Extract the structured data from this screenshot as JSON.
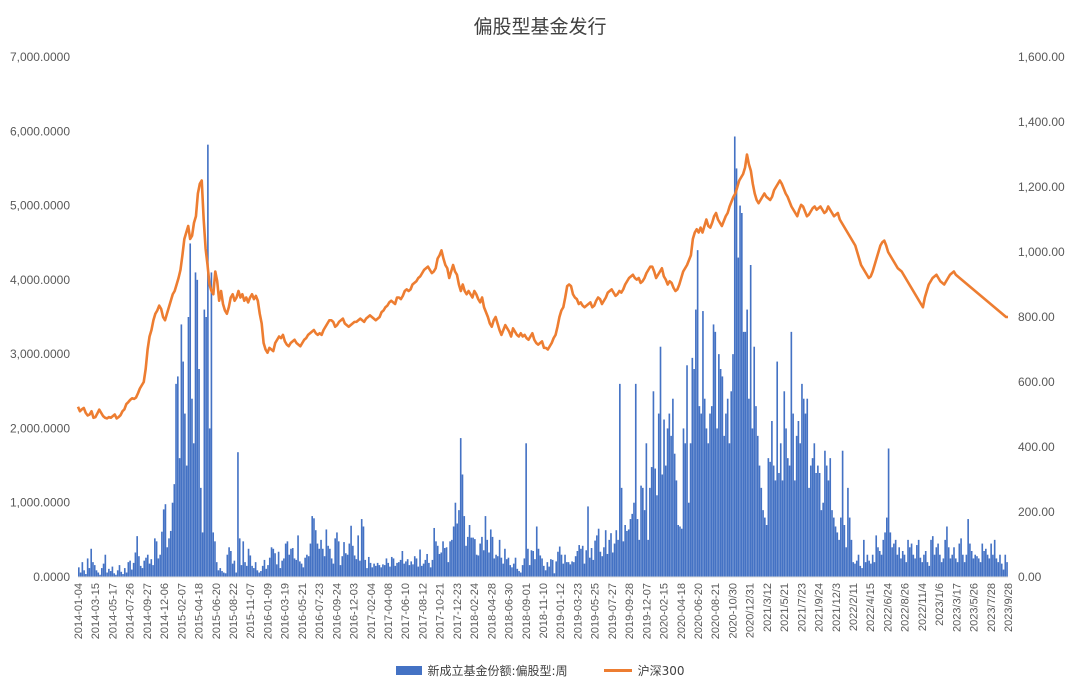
{
  "colors": {
    "bar": "#4472C4",
    "line": "#ED7D31",
    "axis": "#D9D9D9",
    "text": "#595959"
  },
  "chart_data": {
    "type": "bar",
    "title": "偏股型基金发行",
    "left_axis": {
      "range": [
        0,
        7000
      ],
      "ticks": [
        0,
        1000,
        2000,
        3000,
        4000,
        5000,
        6000,
        7000
      ],
      "tick_labels": [
        "0.0000",
        "1,000.0000",
        "2,000.0000",
        "3,000.0000",
        "4,000.0000",
        "5,000.0000",
        "6,000.0000",
        "7,000.0000"
      ]
    },
    "right_axis": {
      "range": [
        0,
        1600
      ],
      "ticks": [
        0,
        200,
        400,
        600,
        800,
        1000,
        1200,
        1400,
        1600
      ],
      "tick_labels": [
        "0.00",
        "200.00",
        "400.00",
        "600.00",
        "800.00",
        "1,000.00",
        "1,200.00",
        "1,400.00",
        "1,600.00"
      ]
    },
    "x_tick_labels": [
      "2014-01-04",
      "2014-03-15",
      "2014-05-17",
      "2014-07-26",
      "2014-09-27",
      "2014-12-06",
      "2015-02-07",
      "2015-04-18",
      "2015-06-20",
      "2015-08-22",
      "2015-11-07",
      "2016-01-09",
      "2016-03-19",
      "2016-05-21",
      "2016-07-23",
      "2016-09-24",
      "2016-12-03",
      "2017-02-04",
      "2017-04-08",
      "2017-06-10",
      "2017-08-12",
      "2017-10-21",
      "2017-12-23",
      "2018-02-24",
      "2018-04-28",
      "2018-06-30",
      "2018-09-01",
      "2018-11-10",
      "2019-01-12",
      "2019-03-23",
      "2019-05-25",
      "2019-07-27",
      "2019-09-28",
      "2019-12-07",
      "2020-02-15",
      "2020-04-18",
      "2020-06-20",
      "2020-08-21",
      "2020-10/30",
      "2020/12/31",
      "2021/3/12",
      "2021/5/21",
      "2021/7/23",
      "2021/9/24",
      "2021/12/3",
      "2022/2/11",
      "2022/4/15",
      "2022/6/24",
      "2022/8/26",
      "2022/11/4",
      "2023/1/6",
      "2023/3/17",
      "2023/5/26",
      "2023/7/28",
      "2023/9/28"
    ],
    "grid": false,
    "legend_position": "bottom",
    "series": [
      {
        "name": "新成立基金份额:偏股型:周",
        "type": "bar",
        "axis": "left",
        "x_start": 0,
        "x_end": 54,
        "values": [
          130,
          60,
          200,
          90,
          40,
          250,
          120,
          380,
          200,
          160,
          90,
          60,
          30,
          120,
          180,
          300,
          60,
          110,
          80,
          140,
          50,
          30,
          90,
          160,
          70,
          40,
          120,
          60,
          200,
          220,
          100,
          190,
          330,
          550,
          280,
          150,
          120,
          220,
          260,
          300,
          180,
          240,
          160,
          520,
          480,
          250,
          300,
          610,
          910,
          980,
          400,
          520,
          620,
          1000,
          1250,
          2600,
          2700,
          1600,
          3400,
          2900,
          2200,
          1500,
          3500,
          4490,
          2400,
          1800,
          4100,
          4000,
          2800,
          1200,
          600,
          3600,
          3500,
          5820,
          2000,
          4100,
          600,
          480,
          200,
          90,
          120,
          80,
          60,
          50,
          300,
          400,
          350,
          180,
          220,
          60,
          1680,
          520,
          160,
          480,
          200,
          150,
          380,
          290,
          150,
          120,
          200,
          90,
          60,
          80,
          150,
          230,
          110,
          160,
          260,
          400,
          380,
          320,
          170,
          340,
          120,
          220,
          250,
          450,
          480,
          300,
          380,
          390,
          250,
          230,
          560,
          210,
          180,
          130,
          260,
          300,
          280,
          450,
          820,
          790,
          630,
          450,
          380,
          500,
          380,
          280,
          640,
          420,
          380,
          250,
          180,
          520,
          600,
          480,
          160,
          280,
          470,
          320,
          300,
          450,
          690,
          420,
          290,
          240,
          560,
          220,
          780,
          680,
          230,
          120,
          270,
          190,
          130,
          180,
          150,
          190,
          160,
          130,
          170,
          160,
          250,
          190,
          140,
          270,
          250,
          150,
          190,
          200,
          230,
          350,
          180,
          210,
          240,
          160,
          210,
          170,
          280,
          250,
          140,
          370,
          150,
          180,
          230,
          310,
          190,
          130,
          230,
          660,
          480,
          420,
          310,
          330,
          480,
          390,
          400,
          200,
          480,
          500,
          680,
          1000,
          720,
          900,
          1870,
          1380,
          820,
          420,
          540,
          700,
          530,
          530,
          510,
          300,
          290,
          450,
          540,
          360,
          820,
          500,
          330,
          640,
          540,
          250,
          300,
          280,
          500,
          260,
          180,
          380,
          240,
          260,
          160,
          130,
          180,
          260,
          110,
          80,
          60,
          160,
          250,
          1800,
          380,
          160,
          360,
          350,
          240,
          680,
          380,
          290,
          250,
          150,
          90,
          200,
          140,
          240,
          230,
          50,
          210,
          340,
          410,
          300,
          180,
          300,
          200,
          200,
          170,
          210,
          200,
          280,
          350,
          430,
          380,
          420,
          180,
          360,
          950,
          260,
          390,
          230,
          490,
          560,
          650,
          340,
          280,
          400,
          630,
          310,
          500,
          590,
          330,
          450,
          630,
          500,
          2600,
          1200,
          480,
          700,
          620,
          640,
          780,
          850,
          1000,
          2600,
          780,
          500,
          1230,
          1200,
          900,
          1800,
          500,
          1200,
          1480,
          2500,
          1460,
          1100,
          2200,
          3100,
          1380,
          2120,
          1500,
          2000,
          2200,
          1900,
          2400,
          1660,
          1300,
          700,
          680,
          650,
          2000,
          1800,
          2850,
          1000,
          1800,
          2950,
          2800,
          3600,
          4400,
          2300,
          2200,
          3580,
          2400,
          2000,
          1800,
          2200,
          2300,
          3400,
          3300,
          2000,
          3000,
          2800,
          2700,
          1900,
          2200,
          2400,
          1800,
          2500,
          3000,
          5930,
          5500,
          4300,
          5000,
          4900,
          3300,
          3300,
          3600,
          2400,
          4200,
          2000,
          3100,
          2300,
          1900,
          1500,
          1200,
          900,
          800,
          700,
          1600,
          1550,
          2100,
          1500,
          1300,
          2900,
          1400,
          1800,
          1300,
          2500,
          2000,
          1600,
          1500,
          3300,
          2200,
          1300,
          1900,
          2100,
          1800,
          2600,
          2400,
          2200,
          2400,
          1200,
          1500,
          1600,
          1800,
          1400,
          1500,
          1400,
          900,
          1000,
          1700,
          1500,
          1300,
          1600,
          900,
          800,
          680,
          600,
          500,
          800,
          1700,
          700,
          400,
          1200,
          800,
          500,
          200,
          180,
          220,
          300,
          150,
          120,
          500,
          200,
          300,
          220,
          180,
          300,
          200,
          560,
          400,
          350,
          300,
          500,
          600,
          800,
          1730,
          600,
          400,
          450,
          500,
          300,
          400,
          250,
          350,
          300,
          200,
          500,
          400,
          450,
          300,
          250,
          430,
          500,
          260,
          200,
          300,
          350,
          200,
          150,
          500,
          550,
          300,
          400,
          450,
          300,
          200,
          250,
          500,
          680,
          400,
          250,
          300,
          400,
          250,
          200,
          450,
          520,
          300,
          200,
          300,
          780,
          450,
          350,
          250,
          300,
          280,
          250,
          200,
          450,
          350,
          380,
          300,
          250,
          450,
          300,
          500,
          250,
          200,
          300,
          180,
          100,
          300,
          200
        ]
      },
      {
        "name": "沪深300",
        "type": "line",
        "axis": "right",
        "x_start": 0,
        "x_end": 54,
        "values": [
          524,
          510,
          516,
          520,
          505,
          497,
          500,
          510,
          490,
          492,
          503,
          515,
          505,
          495,
          490,
          488,
          492,
          490,
          495,
          500,
          488,
          492,
          498,
          510,
          516,
          532,
          538,
          545,
          550,
          548,
          552,
          565,
          580,
          590,
          600,
          640,
          700,
          740,
          760,
          790,
          810,
          820,
          835,
          825,
          800,
          790,
          810,
          830,
          850,
          870,
          880,
          900,
          920,
          945,
          990,
          1040,
          1060,
          1080,
          1040,
          1050,
          1090,
          1110,
          1180,
          1210,
          1220,
          1100,
          1010,
          960,
          900,
          880,
          870,
          940,
          910,
          850,
          880,
          840,
          820,
          810,
          830,
          860,
          870,
          850,
          860,
          880,
          860,
          870,
          850,
          860,
          845,
          860,
          870,
          855,
          865,
          850,
          810,
          780,
          720,
          700,
          690,
          705,
          700,
          695,
          720,
          730,
          740,
          735,
          745,
          725,
          715,
          710,
          720,
          725,
          730,
          720,
          715,
          710,
          720,
          730,
          735,
          745,
          750,
          755,
          760,
          750,
          745,
          750,
          745,
          760,
          770,
          780,
          790,
          790,
          785,
          770,
          775,
          785,
          790,
          795,
          780,
          775,
          770,
          775,
          780,
          785,
          785,
          790,
          795,
          790,
          785,
          795,
          800,
          805,
          800,
          795,
          790,
          795,
          800,
          815,
          820,
          830,
          835,
          845,
          850,
          845,
          840,
          860,
          860,
          855,
          865,
          880,
          885,
          880,
          885,
          900,
          905,
          910,
          920,
          925,
          935,
          945,
          950,
          955,
          945,
          935,
          940,
          950,
          980,
          990,
          1005,
          980,
          960,
          950,
          920,
          940,
          960,
          940,
          930,
          900,
          880,
          900,
          880,
          870,
          880,
          870,
          860,
          880,
          870,
          855,
          845,
          860,
          830,
          815,
          800,
          780,
          770,
          790,
          800,
          780,
          760,
          745,
          760,
          775,
          765,
          755,
          740,
          765,
          755,
          745,
          740,
          750,
          740,
          745,
          735,
          730,
          740,
          750,
          730,
          720,
          715,
          720,
          725,
          705,
          705,
          700,
          710,
          720,
          735,
          745,
          770,
          800,
          820,
          830,
          860,
          895,
          900,
          895,
          870,
          860,
          855,
          840,
          845,
          835,
          830,
          835,
          840,
          845,
          830,
          835,
          850,
          860,
          855,
          840,
          850,
          860,
          875,
          880,
          885,
          875,
          865,
          870,
          880,
          875,
          885,
          900,
          910,
          920,
          925,
          930,
          920,
          915,
          920,
          905,
          910,
          920,
          935,
          945,
          955,
          955,
          940,
          920,
          930,
          940,
          950,
          925,
          915,
          900,
          910,
          905,
          890,
          880,
          885,
          900,
          920,
          940,
          950,
          960,
          975,
          990,
          1040,
          1060,
          1070,
          1060,
          1075,
          1060,
          1080,
          1100,
          1080,
          1075,
          1090,
          1110,
          1120,
          1100,
          1090,
          1080,
          1095,
          1110,
          1120,
          1140,
          1155,
          1170,
          1180,
          1200,
          1220,
          1230,
          1240,
          1260,
          1300,
          1270,
          1250,
          1210,
          1180,
          1160,
          1150,
          1160,
          1170,
          1180,
          1170,
          1165,
          1160,
          1170,
          1190,
          1200,
          1210,
          1220,
          1210,
          1195,
          1180,
          1170,
          1155,
          1140,
          1130,
          1120,
          1110,
          1130,
          1145,
          1140,
          1125,
          1110,
          1115,
          1125,
          1135,
          1140,
          1130,
          1135,
          1140,
          1130,
          1120,
          1125,
          1140,
          1130,
          1120,
          1110,
          1115,
          1120,
          1100,
          1090,
          1080,
          1070,
          1060,
          1050,
          1040,
          1030,
          1020,
          1000,
          980,
          960,
          950,
          940,
          930,
          920,
          925,
          940,
          960,
          980,
          1000,
          1020,
          1030,
          1035,
          1020,
          1000,
          990,
          980,
          970,
          960,
          950,
          945,
          940,
          930,
          920,
          910,
          900,
          890,
          880,
          870,
          860,
          850,
          840,
          830,
          860,
          880,
          900,
          910,
          920,
          925,
          930,
          920,
          910,
          905,
          900,
          910,
          920,
          930,
          935,
          940,
          930,
          925,
          920,
          915,
          910,
          905,
          900,
          895,
          890,
          885,
          880,
          875,
          870,
          865,
          860,
          855,
          850,
          845,
          840,
          835,
          830,
          825,
          820,
          815,
          810,
          805,
          800,
          800
        ]
      }
    ]
  },
  "legend": {
    "bar_label": "新成立基金份额:偏股型:周",
    "line_label": "沪深300"
  }
}
